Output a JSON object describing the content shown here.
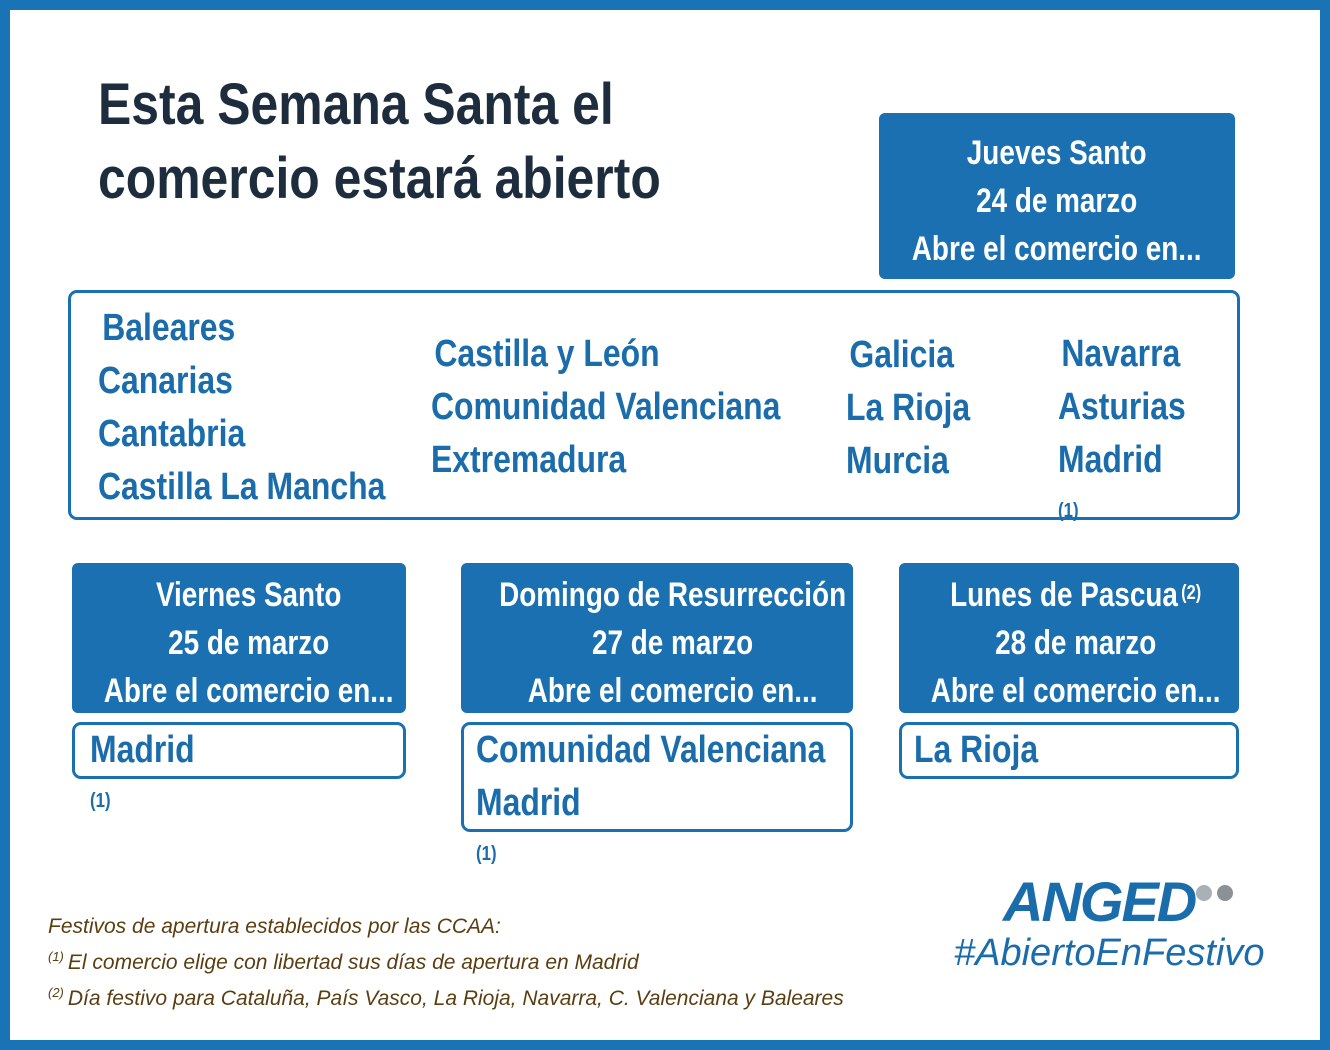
{
  "title": {
    "line1": "Esta Semana Santa el",
    "line2": "comercio estará abierto"
  },
  "jueves": {
    "day": "Jueves Santo",
    "date": "24 de marzo",
    "text": "Abre el comercio en...",
    "col1": [
      "Baleares",
      "Canarias",
      "Cantabria",
      "Castilla La Mancha"
    ],
    "col2": [
      "Castilla y León",
      "Comunidad Valenciana",
      "Extremadura"
    ],
    "col3": [
      "Galicia",
      "La Rioja",
      "Murcia"
    ],
    "col4": [
      "Navarra",
      "Asturias",
      "Madrid"
    ],
    "note_madrid": "(1)"
  },
  "viernes": {
    "day": "Viernes Santo",
    "date": "25 de marzo",
    "text": "Abre el comercio en...",
    "regions": [
      "Madrid"
    ],
    "note": "(1)"
  },
  "domingo": {
    "day": "Domingo de Resurrección",
    "date": "27 de marzo",
    "text": "Abre el comercio en...",
    "regions": [
      "Comunidad Valenciana",
      "Madrid"
    ],
    "note": "(1)"
  },
  "lunes": {
    "day": "Lunes de Pascua",
    "day_note": "(2)",
    "date": "28 de marzo",
    "text": "Abre el comercio en...",
    "regions": [
      "La Rioja"
    ]
  },
  "footer": {
    "heading": "Festivos de apertura establecidos por las CCAA:",
    "note1_mark": "(1)",
    "note1": "El comercio elige con libertad sus días de apertura en Madrid",
    "note2_mark": "(2)",
    "note2": "Día festivo para Cataluña, País Vasco, La Rioja, Navarra, C. Valenciana y Baleares"
  },
  "brand": {
    "logo": "ANGED",
    "hashtag": "#AbiertoEnFestivo"
  },
  "colors": {
    "frame": "#1a73b5",
    "header_bg": "#1a70b0",
    "title": "#1e2d3d",
    "region_text": "#1a6cab",
    "footer_text": "#5a3e12"
  }
}
